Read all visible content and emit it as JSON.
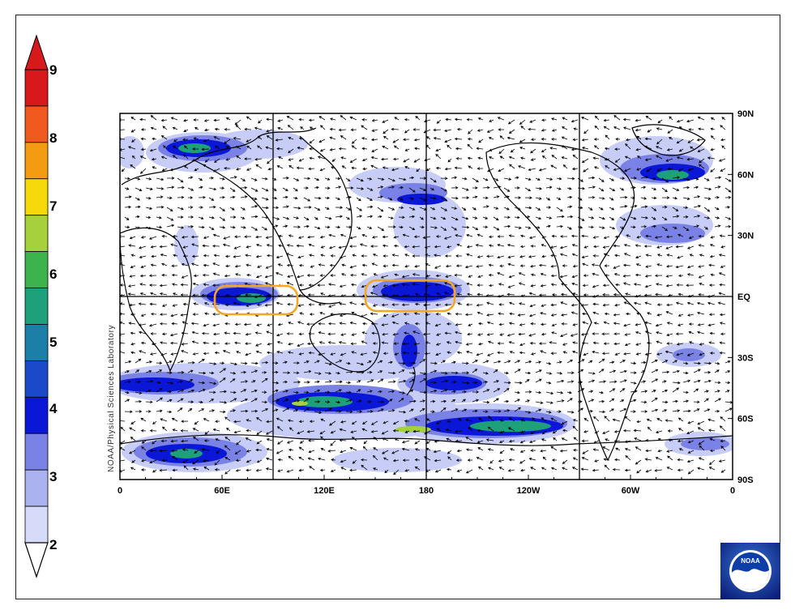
{
  "colorbar": {
    "labels": [
      "9",
      "8",
      "7",
      "6",
      "5",
      "4",
      "3",
      "2"
    ],
    "colors": [
      "#d7191c",
      "#f05a1e",
      "#f39c12",
      "#f5d90a",
      "#a7d13a",
      "#3cb44b",
      "#1ea07a",
      "#1b7fa8",
      "#1a49c9",
      "#0b17d6",
      "#7b82e6",
      "#aab2f0",
      "#d6dbf9"
    ]
  },
  "map": {
    "x_ticks": [
      "0",
      "60E",
      "120E",
      "180",
      "120W",
      "60W",
      "0"
    ],
    "y_ticks": [
      "90N",
      "60N",
      "30N",
      "EQ",
      "30S",
      "60S",
      "90S"
    ],
    "credit": "NOAA/Physical Sciences Laboratory",
    "highlight_color": "#f5a623"
  },
  "logo": {
    "text": "NOAA"
  }
}
